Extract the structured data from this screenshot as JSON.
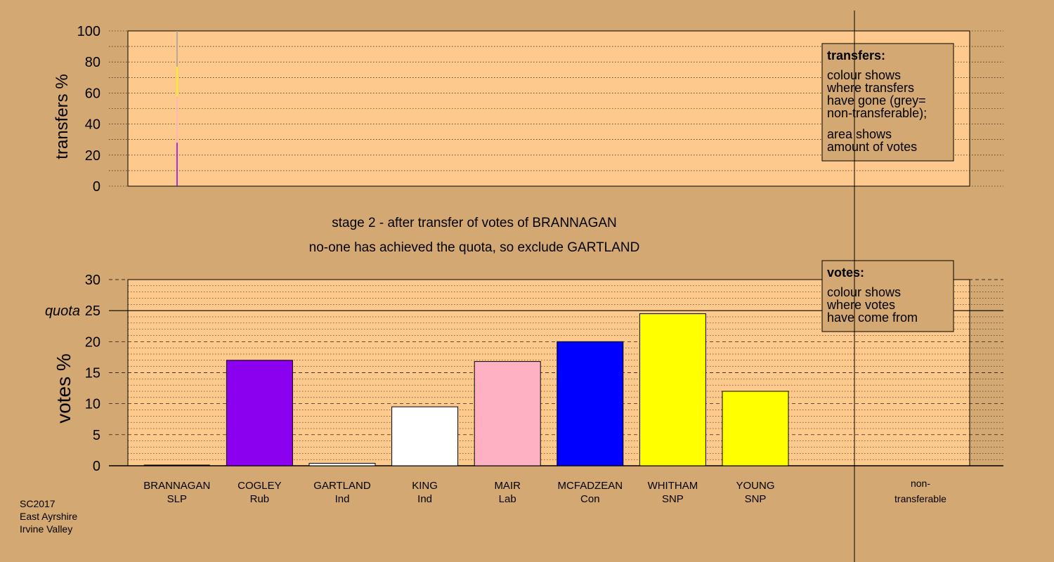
{
  "colors": {
    "background": "#d4a872",
    "plot_background": "#fec98d",
    "SLP": "#ffc0cb",
    "Rub": "#8b00ee",
    "Ind": "#ffffff",
    "Lab": "#ffb1c4",
    "Con": "#0000ff",
    "SNP": "#ffff00",
    "non_transferable": "#a0a0a0"
  },
  "footer": {
    "line1": "SC2017",
    "line2": "East Ayrshire",
    "line3": "Irvine Valley"
  },
  "stage": {
    "line1": "stage 2 - after transfer of votes of BRANNAGAN",
    "line2": "no-one has achieved the quota, so exclude GARTLAND"
  },
  "legend_transfers": {
    "title": "transfers:",
    "lines": [
      "colour shows",
      "where transfers",
      "have gone (grey=",
      "non-transferable);",
      "area shows",
      "amount of votes"
    ]
  },
  "legend_votes": {
    "title": "votes:",
    "lines": [
      "colour shows",
      "where votes",
      "have come from"
    ]
  },
  "chart_data": [
    {
      "type": "bar",
      "ylabel": "transfers %",
      "ylim": [
        0,
        100
      ],
      "yticks": [
        0,
        20,
        40,
        60,
        80,
        100
      ],
      "grid": "dotted",
      "transfer_from": "BRANNAGAN",
      "segments": [
        {
          "to": "COGLEY",
          "party": "Rub",
          "value": 28
        },
        {
          "to": "MAIR",
          "party": "Lab",
          "value": 30
        },
        {
          "to": "MCFADZEAN",
          "party": "Con",
          "value": 0
        },
        {
          "to": "WHITHAM",
          "party": "SNP",
          "value": 19
        },
        {
          "to": "KING",
          "party": "Ind",
          "value": 0
        },
        {
          "to": "non-transferable",
          "party": "",
          "value": 23
        }
      ]
    },
    {
      "type": "bar",
      "ylabel": "votes %",
      "ylim": [
        0,
        30
      ],
      "yticks": [
        0,
        5,
        10,
        15,
        20,
        25,
        30
      ],
      "quota": 25,
      "quota_label": "quota",
      "grid": "dashed",
      "categories": [
        {
          "name": "BRANNAGAN",
          "party": "SLP",
          "value": 0
        },
        {
          "name": "COGLEY",
          "party": "Rub",
          "value": 17.0
        },
        {
          "name": "GARTLAND",
          "party": "Ind",
          "value": 0.4
        },
        {
          "name": "KING",
          "party": "Ind",
          "value": 9.5
        },
        {
          "name": "MAIR",
          "party": "Lab",
          "value": 16.8
        },
        {
          "name": "MCFADZEAN",
          "party": "Con",
          "value": 20.0
        },
        {
          "name": "WHITHAM",
          "party": "SNP",
          "value": 24.5
        },
        {
          "name": "YOUNG",
          "party": "SNP",
          "value": 12.0
        }
      ],
      "non_transferable": {
        "name": "non-",
        "name2": "transferable",
        "value": 0
      }
    }
  ]
}
